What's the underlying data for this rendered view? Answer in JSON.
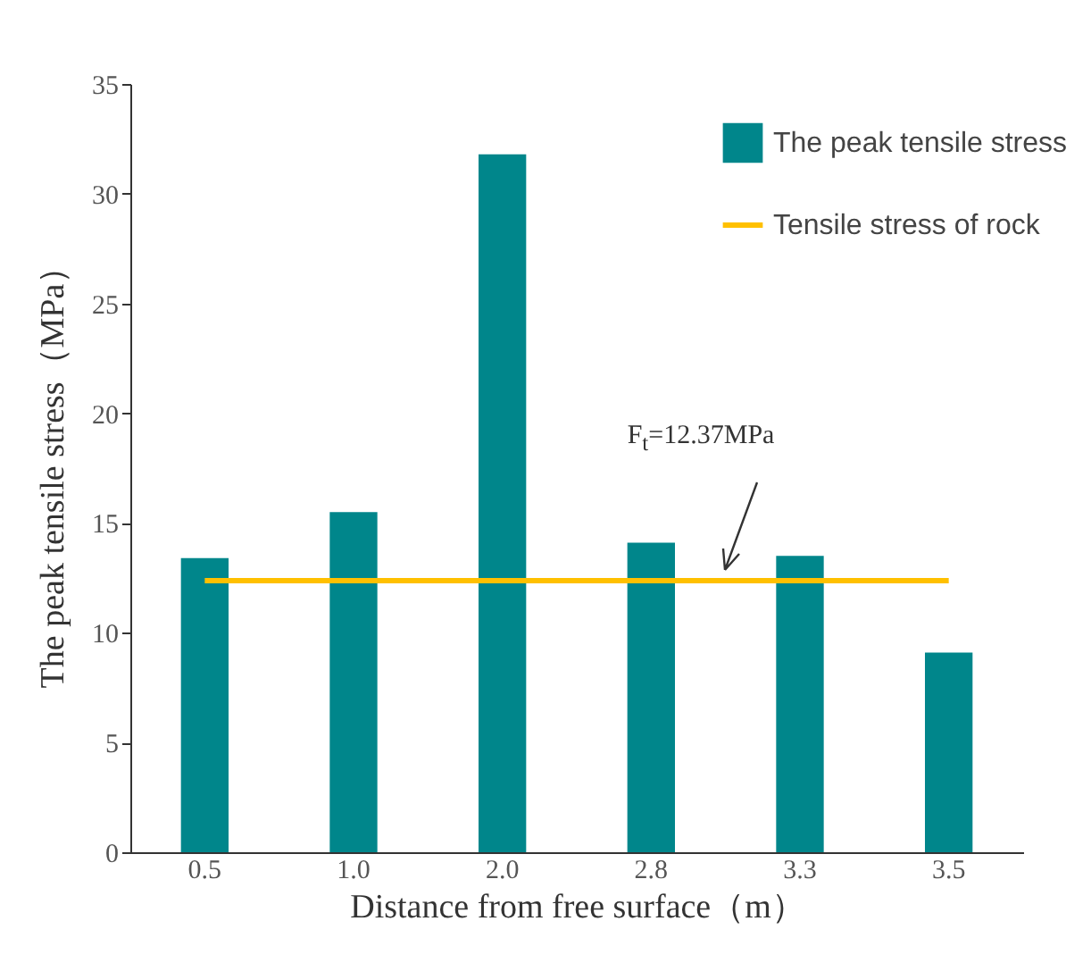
{
  "chart_data": {
    "type": "bar",
    "xlabel": "Distance from free surface（m）",
    "ylabel": "The peak tensile stress（MPa）",
    "categories": [
      "0.5",
      "1.0",
      "2.0",
      "2.8",
      "3.3",
      "3.5"
    ],
    "series": [
      {
        "name": "The peak tensile stress",
        "color": "#00868b",
        "values": [
          13.4,
          15.5,
          31.8,
          14.1,
          13.5,
          9.1
        ]
      },
      {
        "name": "Tensile stress of rock",
        "type": "line",
        "color": "#ffc000",
        "values": [
          12.37,
          12.37,
          12.37,
          12.37,
          12.37,
          12.37
        ]
      }
    ],
    "ylim": [
      0,
      35
    ],
    "yticks": [
      0,
      5,
      10,
      15,
      20,
      25,
      30,
      35
    ],
    "grid": false,
    "legend": "top right",
    "annotations": [
      "F$_{t}$=12.37MPa"
    ]
  }
}
